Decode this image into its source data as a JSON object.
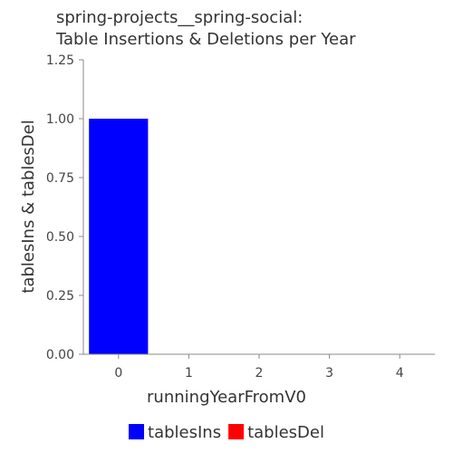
{
  "chart_data": {
    "type": "bar",
    "title_lines": [
      "spring-projects__spring-social:",
      "Table Insertions & Deletions per Year"
    ],
    "xlabel": "runningYearFromV0",
    "ylabel": "tablesIns & tablesDel",
    "categories": [
      "0",
      "1",
      "2",
      "3",
      "4"
    ],
    "x": [
      0,
      1,
      2,
      3,
      4
    ],
    "series": [
      {
        "name": "tablesIns",
        "values": [
          1,
          0,
          0,
          0,
          0
        ],
        "color": "#0000ff"
      },
      {
        "name": "tablesDel",
        "values": [
          0,
          0,
          0,
          0,
          0
        ],
        "color": "#ff0000"
      }
    ],
    "ylim": [
      0,
      1.25
    ],
    "xlim": [
      -0.5,
      4.5
    ],
    "yticks": [
      0,
      0.25,
      0.5,
      0.75,
      1.0,
      1.25
    ],
    "ytick_labels": [
      "0.00",
      "0.25",
      "0.50",
      "0.75",
      "1.00",
      "1.25"
    ],
    "grid": false,
    "legend": "bottom-center"
  }
}
